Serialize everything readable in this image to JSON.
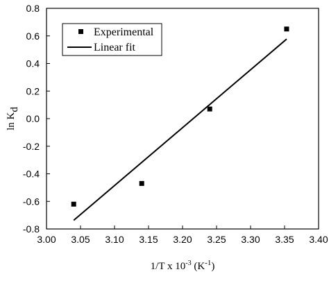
{
  "chart_data": {
    "type": "scatter",
    "title": "",
    "xlabel": {
      "prefix": "1/T x 10",
      "exponent": "-3",
      "unit_open": " (K",
      "unit_exp": "-1",
      "unit_close": ")"
    },
    "ylabel": {
      "base": "ln K",
      "subscript": "d"
    },
    "xlim": [
      3.0,
      3.4
    ],
    "ylim": [
      -0.8,
      0.8
    ],
    "x_ticks": [
      "3.00",
      "3.05",
      "3.10",
      "3.15",
      "3.20",
      "3.25",
      "3.30",
      "3.35",
      "3.40"
    ],
    "y_ticks": [
      "-0.8",
      "-0.6",
      "-0.4",
      "-0.2",
      "0.0",
      "0.2",
      "0.4",
      "0.6",
      "0.8"
    ],
    "grid": false,
    "legend_position": "top-left",
    "series": [
      {
        "name": "Experimental",
        "kind": "points",
        "marker": "square",
        "color": "#000000",
        "x": [
          3.04,
          3.14,
          3.24,
          3.353
        ],
        "y": [
          -0.62,
          -0.47,
          0.07,
          0.65
        ]
      },
      {
        "name": "Linear fit",
        "kind": "line",
        "color": "#000000",
        "x": [
          3.04,
          3.353
        ],
        "y": [
          -0.737,
          0.577
        ]
      }
    ]
  }
}
